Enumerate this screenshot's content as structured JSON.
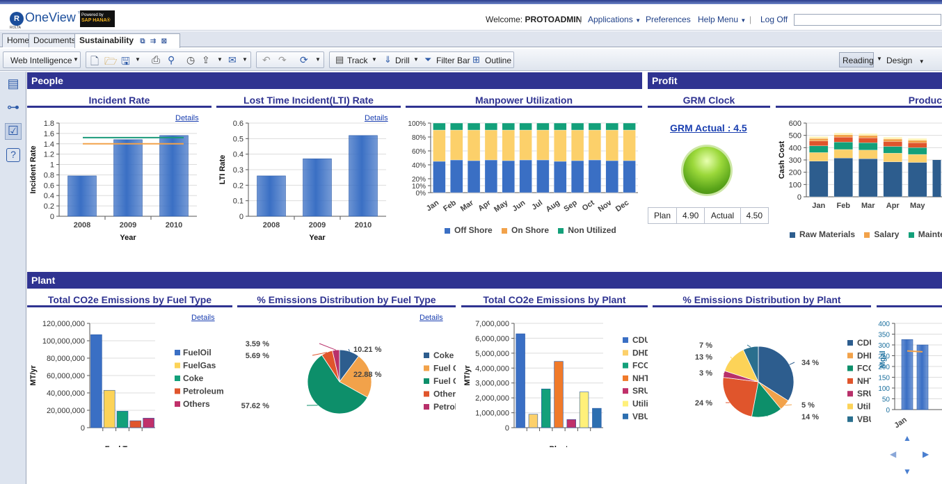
{
  "app": {
    "brand_name": "OneView",
    "brand_tm": "™",
    "brand_sub": "ROLTA",
    "hana_line1": "Powered by",
    "hana_line2": "SAP HANA®"
  },
  "header": {
    "welcome_prefix": "Welcome:",
    "username": "PROTOADMIN",
    "applications": "Applications",
    "preferences": "Preferences",
    "help_menu": "Help Menu",
    "separator": "|",
    "log_off": "Log Off",
    "search_value": ""
  },
  "tabs": [
    "Home",
    "Documents",
    "Sustainability"
  ],
  "toolbar": {
    "web_intelligence": "Web Intelligence",
    "track": "Track",
    "drill": "Drill",
    "filter_bar": "Filter Bar",
    "outline": "Outline",
    "reading": "Reading",
    "design": "Design"
  },
  "sections": {
    "people": "People",
    "profit": "Profit",
    "plant": "Plant"
  },
  "titles": {
    "incident": "Incident Rate",
    "lti": "Lost Time Incident(LTI) Rate",
    "manpower": "Manpower Utilization",
    "grm": "GRM Clock",
    "product": "Produc",
    "co2_fuel": "Total CO2e Emissions by Fuel Type",
    "pct_fuel": "% Emissions Distribution by Fuel Type",
    "co2_plant": "Total CO2e Emissions by Plant",
    "pct_plant": "% Emissions Distribution by Plant"
  },
  "details_label": "Details",
  "grm": {
    "actual_link": "GRM Actual : 4.5",
    "plan_label": "Plan",
    "plan_value": "4.90",
    "actual_label": "Actual",
    "actual_value": "4.50"
  },
  "colors": {
    "section_bar": "#2f3391",
    "blue": "#3a6fc4",
    "orange": "#f2a24a",
    "green": "#13a07a",
    "teal": "#109a80",
    "red": "#e0552c",
    "magenta": "#b8306a",
    "yellow": "#fcd358",
    "navy": "#2d5d8e"
  },
  "chart_data": [
    {
      "id": "incident",
      "type": "bar",
      "categories": [
        "2008",
        "2009",
        "2010"
      ],
      "values": [
        0.78,
        1.48,
        1.56
      ],
      "reference_lines": [
        1.52,
        1.4
      ],
      "xlabel": "Year",
      "ylabel": "Incident Rate",
      "ylim": [
        0,
        1.8
      ],
      "yticks": [
        "0",
        "0.2",
        "0.4",
        "0.6",
        "0.8",
        "1",
        "1.2",
        "1.4",
        "1.6",
        "1.8"
      ]
    },
    {
      "id": "lti",
      "type": "bar",
      "categories": [
        "2008",
        "2009",
        "2010"
      ],
      "values": [
        0.26,
        0.37,
        0.52
      ],
      "xlabel": "Year",
      "ylabel": "LTI Rate",
      "ylim": [
        0,
        0.6
      ],
      "yticks": [
        "0",
        "0.1",
        "0.2",
        "0.3",
        "0.4",
        "0.5",
        "0.6"
      ]
    },
    {
      "id": "manpower",
      "type": "bar",
      "stacked": true,
      "categories": [
        "Jan",
        "Feb",
        "Mar",
        "Apr",
        "May",
        "Jun",
        "Jul",
        "Aug",
        "Sep",
        "Oct",
        "Nov",
        "Dec"
      ],
      "series": [
        {
          "name": "Off Shore",
          "values": [
            45,
            47,
            46,
            47,
            46,
            47,
            47,
            45,
            46,
            47,
            46,
            46
          ]
        },
        {
          "name": "On Shore",
          "values": [
            45,
            43,
            44,
            43,
            44,
            43,
            43,
            45,
            44,
            43,
            44,
            44
          ]
        },
        {
          "name": "Non Utilized",
          "values": [
            10,
            10,
            10,
            10,
            10,
            10,
            10,
            10,
            10,
            10,
            10,
            10
          ]
        }
      ],
      "yticks": [
        "0%",
        "10%",
        "20%",
        "40%",
        "60%",
        "80%",
        "100%"
      ]
    },
    {
      "id": "product",
      "type": "bar",
      "stacked": true,
      "categories": [
        "Jan",
        "Feb",
        "Mar",
        "Apr",
        "May"
      ],
      "series": [
        {
          "name": "Raw Materials",
          "values": [
            290,
            315,
            310,
            285,
            280
          ]
        },
        {
          "name": "Salary",
          "values": [
            70,
            70,
            70,
            70,
            65
          ]
        },
        {
          "name": "Maintena",
          "values": [
            55,
            60,
            60,
            55,
            55
          ]
        },
        {
          "name": "",
          "values": [
            40,
            40,
            40,
            40,
            40
          ]
        },
        {
          "name": "",
          "values": [
            20,
            20,
            20,
            20,
            20
          ]
        },
        {
          "name": "",
          "values": [
            15,
            15,
            15,
            15,
            15
          ]
        }
      ],
      "ylabel": "Cash Cost",
      "ylim": [
        0,
        600
      ],
      "yticks": [
        "0",
        "100",
        "200",
        "300",
        "400",
        "500",
        "600"
      ]
    },
    {
      "id": "co2_fuel",
      "type": "bar",
      "categories": [
        "FuelOil",
        "FuelGas",
        "Coke",
        "Petroleum",
        "Others"
      ],
      "values": [
        107000000,
        43000000,
        19000000,
        8000000,
        11000000
      ],
      "xlabel": "Fuel Type",
      "ylabel": "MT/yr",
      "ylim": [
        0,
        120000000
      ],
      "yticks": [
        "0",
        "20,000,000",
        "40,000,000",
        "60,000,000",
        "80,000,000",
        "100,000,000",
        "120,000,000"
      ]
    },
    {
      "id": "pct_fuel",
      "type": "pie",
      "labels": [
        "Coke",
        "Fuel Gas",
        "Fuel Oil",
        "Others",
        "Petroleum"
      ],
      "values": [
        10.21,
        22.88,
        57.62,
        5.69,
        3.59
      ],
      "value_labels": [
        "10.21 %",
        "22.88 %",
        "57.62 %",
        "5.69 %",
        "3.59 %"
      ]
    },
    {
      "id": "co2_plant",
      "type": "bar",
      "categories": [
        "CDU/VDU",
        "DHDS",
        "FCCU",
        "NHT/CCR",
        "SRU",
        "Utilities",
        "VBU"
      ],
      "values": [
        6300000,
        900000,
        2600000,
        4450000,
        550000,
        2400000,
        1300000
      ],
      "xlabel": "Plant",
      "ylabel": "MT/yr",
      "ylim": [
        0,
        7000000
      ],
      "yticks": [
        "0",
        "1,000,000",
        "2,000,000",
        "3,000,000",
        "4,000,000",
        "5,000,000",
        "6,000,000",
        "7,000,000"
      ]
    },
    {
      "id": "pct_plant",
      "type": "pie",
      "labels": [
        "CDU/VDU",
        "DHDS",
        "FCCU",
        "NHT/CCR",
        "SRU",
        "Utilities",
        "VBU"
      ],
      "values": [
        34,
        5,
        14,
        24,
        3,
        13,
        7
      ],
      "value_labels": [
        "34 %",
        "5 %",
        "14 %",
        "24 %",
        "3 %",
        "13 %",
        "7 %"
      ]
    },
    {
      "id": "mgal",
      "type": "bar",
      "categories": [
        "Jan",
        ""
      ],
      "values": [
        325,
        300
      ],
      "line_values": [
        272,
        268
      ],
      "ylabel": "Mgal",
      "ylim": [
        0,
        400
      ],
      "yticks": [
        "0",
        "50",
        "100",
        "150",
        "200",
        "250",
        "300",
        "350",
        "400"
      ]
    }
  ]
}
